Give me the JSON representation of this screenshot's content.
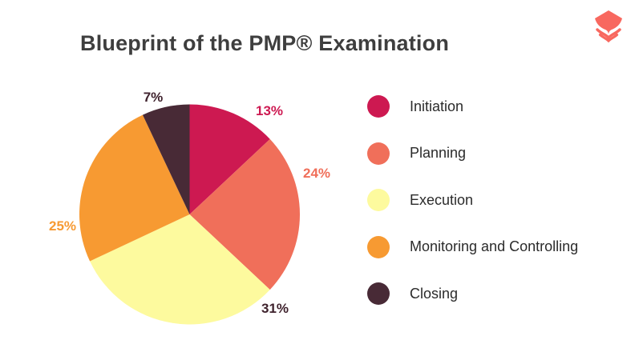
{
  "page": {
    "background": "#FFFFFF"
  },
  "header": {
    "title": "Blueprint of the PMP® Examination",
    "title_color": "#3E3E3E"
  },
  "logo": {
    "name": "brand-emblem",
    "color": "#F8685F"
  },
  "chart_data": {
    "type": "pie",
    "title": "Blueprint of the PMP® Examination",
    "labels": [
      "Initiation",
      "Planning",
      "Execution",
      "Monitoring and Controlling",
      "Closing"
    ],
    "values": [
      13,
      24,
      31,
      25,
      7
    ],
    "unit": "%",
    "percent_labels": [
      "13%",
      "24%",
      "31%",
      "25%",
      "7%"
    ],
    "colors": [
      "#CD1951",
      "#F06F5A",
      "#FDFA9E",
      "#F79A32",
      "#482A36"
    ],
    "percent_label_colors": [
      "#CD1951",
      "#F06F5A",
      "#3F222D",
      "#F79A32",
      "#3F222D"
    ],
    "start_angle_deg": 0,
    "direction": "clockwise",
    "legend_position": "right",
    "legend_text_color": "#2B2B2B",
    "grid": false
  }
}
